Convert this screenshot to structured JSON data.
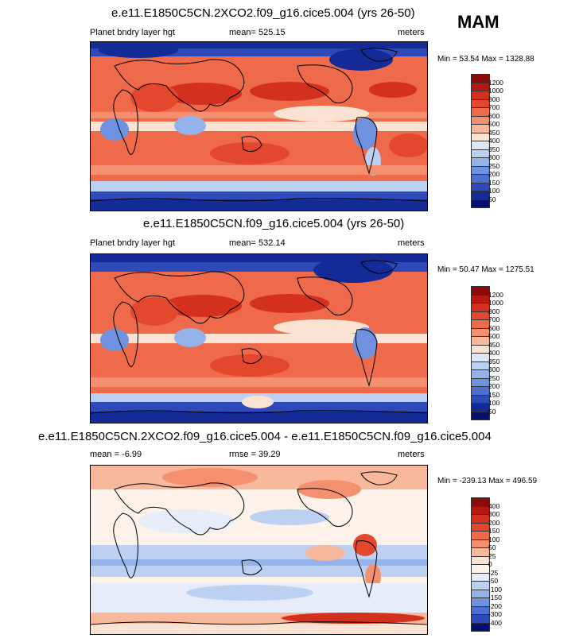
{
  "season": "MAM",
  "panels": [
    {
      "title": "e.e11.E1850C5CN.2XCO2.f09_g16.cice5.004 (yrs 26-50)",
      "left": "Planet bndry layer hgt",
      "center": "mean= 525.15",
      "right": "meters",
      "minmax": "Min =  53.54 Max = 1328.88",
      "levels": [
        "1200",
        "1000",
        "800",
        "700",
        "600",
        "500",
        "450",
        "400",
        "350",
        "300",
        "250",
        "200",
        "150",
        "100",
        "50"
      ]
    },
    {
      "title": "e.e11.E1850C5CN.f09_g16.cice5.004 (yrs 26-50)",
      "left": "Planet bndry layer hgt",
      "center": "mean= 532.14",
      "right": "meters",
      "minmax": "Min =  50.47 Max = 1275.51",
      "levels": [
        "1200",
        "1000",
        "800",
        "700",
        "600",
        "500",
        "450",
        "400",
        "350",
        "300",
        "250",
        "200",
        "150",
        "100",
        "50"
      ]
    },
    {
      "title": "e.e11.E1850C5CN.2XCO2.f09_g16.cice5.004 - e.e11.E1850C5CN.f09_g16.cice5.004",
      "left": "mean =  -6.99",
      "center": "rmse =  39.29",
      "right": "meters",
      "minmax": "Min = -239.13 Max = 496.59",
      "levels": [
        "400",
        "300",
        "200",
        "150",
        "100",
        "50",
        "25",
        "0",
        "-25",
        "-50",
        "-100",
        "-150",
        "-200",
        "-300",
        "-400"
      ]
    }
  ],
  "colors": {
    "abs_scale": [
      "#8b0a0a",
      "#b5190f",
      "#d4301e",
      "#e3482f",
      "#ee6a4b",
      "#f4906f",
      "#f8b89c",
      "#fbe3d3",
      "#dfe7f7",
      "#bcd0f1",
      "#93b3ea",
      "#6e92df",
      "#4d6fd0",
      "#2d4ab8",
      "#142a96",
      "#040f70"
    ],
    "diff_scale": [
      "#8b0a0a",
      "#b5190f",
      "#d4301e",
      "#e3482f",
      "#ee6a4b",
      "#f4906f",
      "#f8b89c",
      "#fbe3d3",
      "#fdf2ea",
      "#e6edf9",
      "#bcd0f1",
      "#93b3ea",
      "#6e92df",
      "#4d6fd0",
      "#2d4ab8",
      "#040f70"
    ]
  }
}
